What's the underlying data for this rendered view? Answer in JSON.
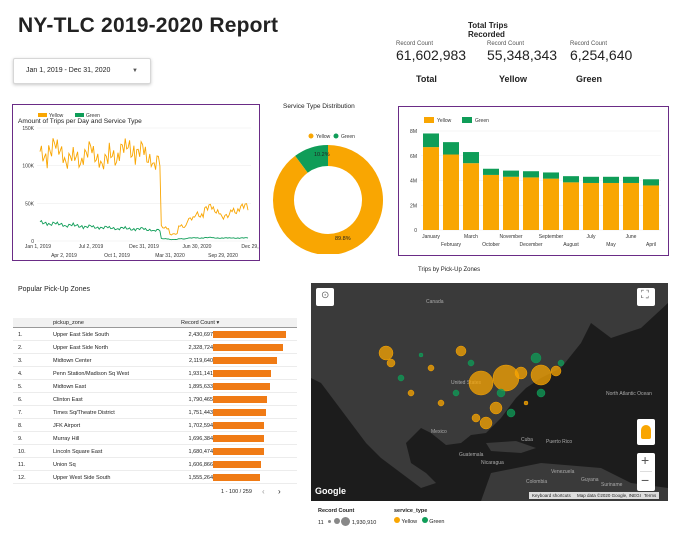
{
  "header": {
    "title": "NY-TLC 2019-2020 Report",
    "date_range": "Jan 1, 2019 - Dec 31, 2020"
  },
  "totals": {
    "title_line1": "Total Trips",
    "title_line2": "Recorded",
    "cards": [
      {
        "caption": "Record Count",
        "value": "61,602,983",
        "label": "Total"
      },
      {
        "caption": "Record Count",
        "value": "55,348,343",
        "label": "Yellow"
      },
      {
        "caption": "Record Count",
        "value": "6,254,640",
        "label": "Green"
      }
    ]
  },
  "colors": {
    "yellow": "#f9a602",
    "green": "#0f9d58",
    "orange": "#f07b15",
    "frame": "#6a2c86"
  },
  "chart_data": [
    {
      "type": "line",
      "title": "Amount of Trips per Day and Service Type",
      "legend": [
        "Yellow",
        "Green"
      ],
      "legend_position": "top-left",
      "y_ticks": [
        "150K",
        "100K",
        "50K",
        "0"
      ],
      "x_ticks_top": [
        "Jan 1, 2019",
        "Jul 2, 2019",
        "Dec 31, 2019",
        "Jun 30, 2020",
        "Dec 29,"
      ],
      "x_ticks_bottom": [
        "Apr 2, 2019",
        "Oct 1, 2019",
        "Mar 31, 2020",
        "Sep 29, 2020"
      ],
      "ylim": [
        0,
        150000
      ],
      "series": [
        {
          "name": "Yellow",
          "values": [
            112000,
            125000,
            118000,
            110000,
            108000,
            118000,
            112000,
            105000,
            114000,
            121000,
            123000,
            118000,
            112000,
            103000,
            18000,
            9000,
            20000,
            29000,
            35000,
            44000,
            40000,
            32000,
            41000,
            45000,
            42000
          ]
        },
        {
          "name": "Green",
          "values": [
            24000,
            23000,
            22000,
            21000,
            20000,
            19000,
            18000,
            18000,
            17000,
            17000,
            16000,
            16000,
            15000,
            14000,
            3000,
            2000,
            3000,
            4000,
            4000,
            4500,
            4000,
            4000,
            4000,
            4000,
            4000
          ]
        }
      ]
    },
    {
      "type": "pie",
      "title": "Service Type Distribution",
      "legend": [
        "Yellow",
        "Green"
      ],
      "legend_position": "top",
      "slices": [
        {
          "name": "Yellow",
          "value": 89.8,
          "label": "89.8%"
        },
        {
          "name": "Green",
          "value": 10.2,
          "label": "10.2%"
        }
      ]
    },
    {
      "type": "bar",
      "stacked": true,
      "legend": [
        "Yellow",
        "Green"
      ],
      "legend_position": "top-left",
      "y_ticks": [
        "8M",
        "6M",
        "4M",
        "2M",
        "0"
      ],
      "ylim": [
        0,
        8000000
      ],
      "categories": [
        "January",
        "February",
        "March",
        "October",
        "November",
        "December",
        "September",
        "August",
        "July",
        "May",
        "June",
        "April"
      ],
      "series": [
        {
          "name": "Yellow",
          "values": [
            6700000,
            6100000,
            5400000,
            4450000,
            4300000,
            4250000,
            4150000,
            3850000,
            3800000,
            3800000,
            3800000,
            3600000
          ]
        },
        {
          "name": "Green",
          "values": [
            1100000,
            1000000,
            900000,
            500000,
            500000,
            500000,
            500000,
            500000,
            500000,
            500000,
            500000,
            500000
          ]
        }
      ]
    }
  ],
  "zones": {
    "title": "Popular Pick-Up Zones",
    "col_zone": "pickup_zone",
    "col_count": "Record Count",
    "sort_icon": "sort-desc-icon",
    "max": 2430697,
    "rows": [
      {
        "n": "1.",
        "zone": "Upper East Side South",
        "count": "2,430,697",
        "v": 2430697
      },
      {
        "n": "2.",
        "zone": "Upper East Side North",
        "count": "2,328,724",
        "v": 2328724
      },
      {
        "n": "3.",
        "zone": "Midtown Center",
        "count": "2,119,640",
        "v": 2119640
      },
      {
        "n": "4.",
        "zone": "Penn Station/Madison Sq West",
        "count": "1,931,141",
        "v": 1931141
      },
      {
        "n": "5.",
        "zone": "Midtown East",
        "count": "1,895,633",
        "v": 1895633
      },
      {
        "n": "6.",
        "zone": "Clinton East",
        "count": "1,790,465",
        "v": 1790465
      },
      {
        "n": "7.",
        "zone": "Times Sq/Theatre District",
        "count": "1,751,443",
        "v": 1751443
      },
      {
        "n": "8.",
        "zone": "JFK Airport",
        "count": "1,702,594",
        "v": 1702594
      },
      {
        "n": "9.",
        "zone": "Murray Hill",
        "count": "1,696,384",
        "v": 1696384
      },
      {
        "n": "10.",
        "zone": "Lincoln Square East",
        "count": "1,680,474",
        "v": 1680474
      },
      {
        "n": "11.",
        "zone": "Union Sq",
        "count": "1,606,866",
        "v": 1606866
      },
      {
        "n": "12.",
        "zone": "Upper West Side South",
        "count": "1,555,264",
        "v": 1555264
      }
    ],
    "pagination": "1 - 100 / 259",
    "prev_icon": "chevron-left-icon",
    "next_icon": "chevron-right-icon"
  },
  "map": {
    "title": "Trips by  Pick-Up Zones",
    "labels": [
      "Canada",
      "United States",
      "Mexico",
      "Cuba",
      "Puerto Rico",
      "Guatemala",
      "Nicaragua",
      "Venezuela",
      "Colombia",
      "Guyana",
      "Suriname",
      "North Atlantic Ocean"
    ],
    "google": "Google",
    "footer": [
      "Keyboard shortcuts",
      "Map data ©2020 Google, INEGI",
      "Terms"
    ],
    "zoom_in": "+",
    "zoom_out": "−",
    "legend_record": "Record Count",
    "legend_min": "11",
    "legend_max": "1,930,910",
    "legend_service": "service_type",
    "legend_yellow": "Yellow",
    "legend_green": "Green"
  }
}
